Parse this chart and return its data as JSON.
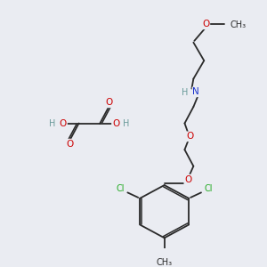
{
  "background_color": "#eaecf2",
  "figsize": [
    3.0,
    3.0
  ],
  "dpi": 100,
  "bond_color": "#2a2a2a",
  "bond_lw": 1.3,
  "colors": {
    "O": "#cc0000",
    "N": "#1a33cc",
    "Cl": "#22aa22",
    "H": "#6a9a9a",
    "C": "#2a2a2a"
  },
  "font_size": 7.5
}
